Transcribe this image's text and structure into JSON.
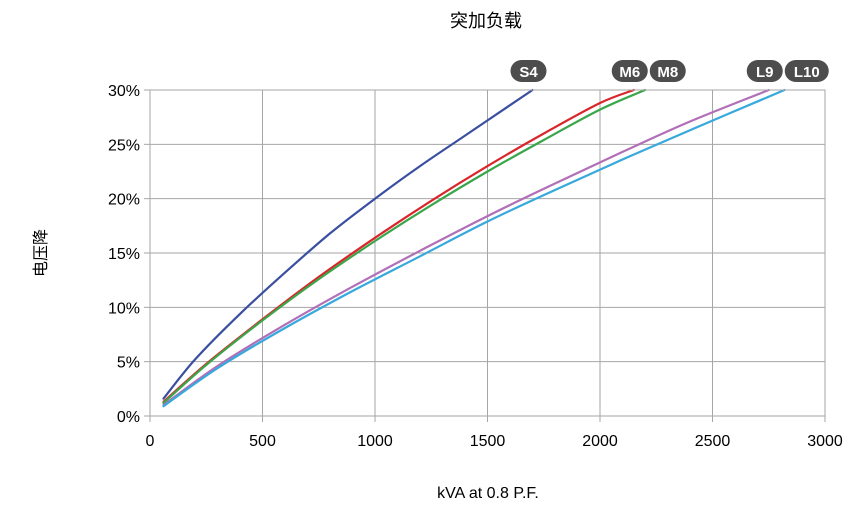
{
  "chart_data": {
    "type": "line",
    "title": "突加负载",
    "xlabel": "kVA at 0.8 P.F.",
    "ylabel": "电压降",
    "xlim": [
      0,
      3000
    ],
    "ylim": [
      0,
      30
    ],
    "x_ticks": [
      0,
      500,
      1000,
      1500,
      2000,
      2500,
      3000
    ],
    "y_ticks": [
      0,
      5,
      10,
      15,
      20,
      25,
      30
    ],
    "y_tick_labels": [
      "0%",
      "5%",
      "10%",
      "15%",
      "20%",
      "25%",
      "30%"
    ],
    "grid": true,
    "series": [
      {
        "name": "S4",
        "color": "#3a4fa0",
        "x": [
          60,
          200,
          400,
          600,
          800,
          1000,
          1200,
          1400,
          1600,
          1700
        ],
        "y": [
          1.6,
          5.2,
          9.4,
          13.2,
          16.8,
          20.0,
          23.0,
          25.8,
          28.6,
          30.0
        ]
      },
      {
        "name": "M6",
        "color": "#d9262b",
        "x": [
          60,
          250,
          500,
          750,
          1000,
          1250,
          1500,
          1750,
          2000,
          2150
        ],
        "y": [
          1.3,
          4.8,
          8.9,
          12.8,
          16.4,
          19.8,
          23.0,
          26.0,
          28.8,
          30.0
        ]
      },
      {
        "name": "M8",
        "color": "#3aa64a",
        "x": [
          60,
          250,
          500,
          750,
          1000,
          1250,
          1500,
          1750,
          2000,
          2200
        ],
        "y": [
          1.2,
          4.7,
          8.8,
          12.6,
          16.1,
          19.4,
          22.5,
          25.4,
          28.2,
          30.0
        ]
      },
      {
        "name": "L9",
        "color": "#b16fb8",
        "x": [
          60,
          300,
          600,
          900,
          1200,
          1500,
          1800,
          2100,
          2400,
          2750
        ],
        "y": [
          1.0,
          4.6,
          8.4,
          11.9,
          15.2,
          18.4,
          21.4,
          24.3,
          27.1,
          30.0
        ]
      },
      {
        "name": "L10",
        "color": "#37a9dc",
        "x": [
          60,
          300,
          600,
          900,
          1200,
          1500,
          1800,
          2100,
          2400,
          2820
        ],
        "y": [
          0.9,
          4.4,
          8.1,
          11.5,
          14.7,
          17.9,
          20.8,
          23.6,
          26.3,
          30.0
        ]
      }
    ]
  }
}
